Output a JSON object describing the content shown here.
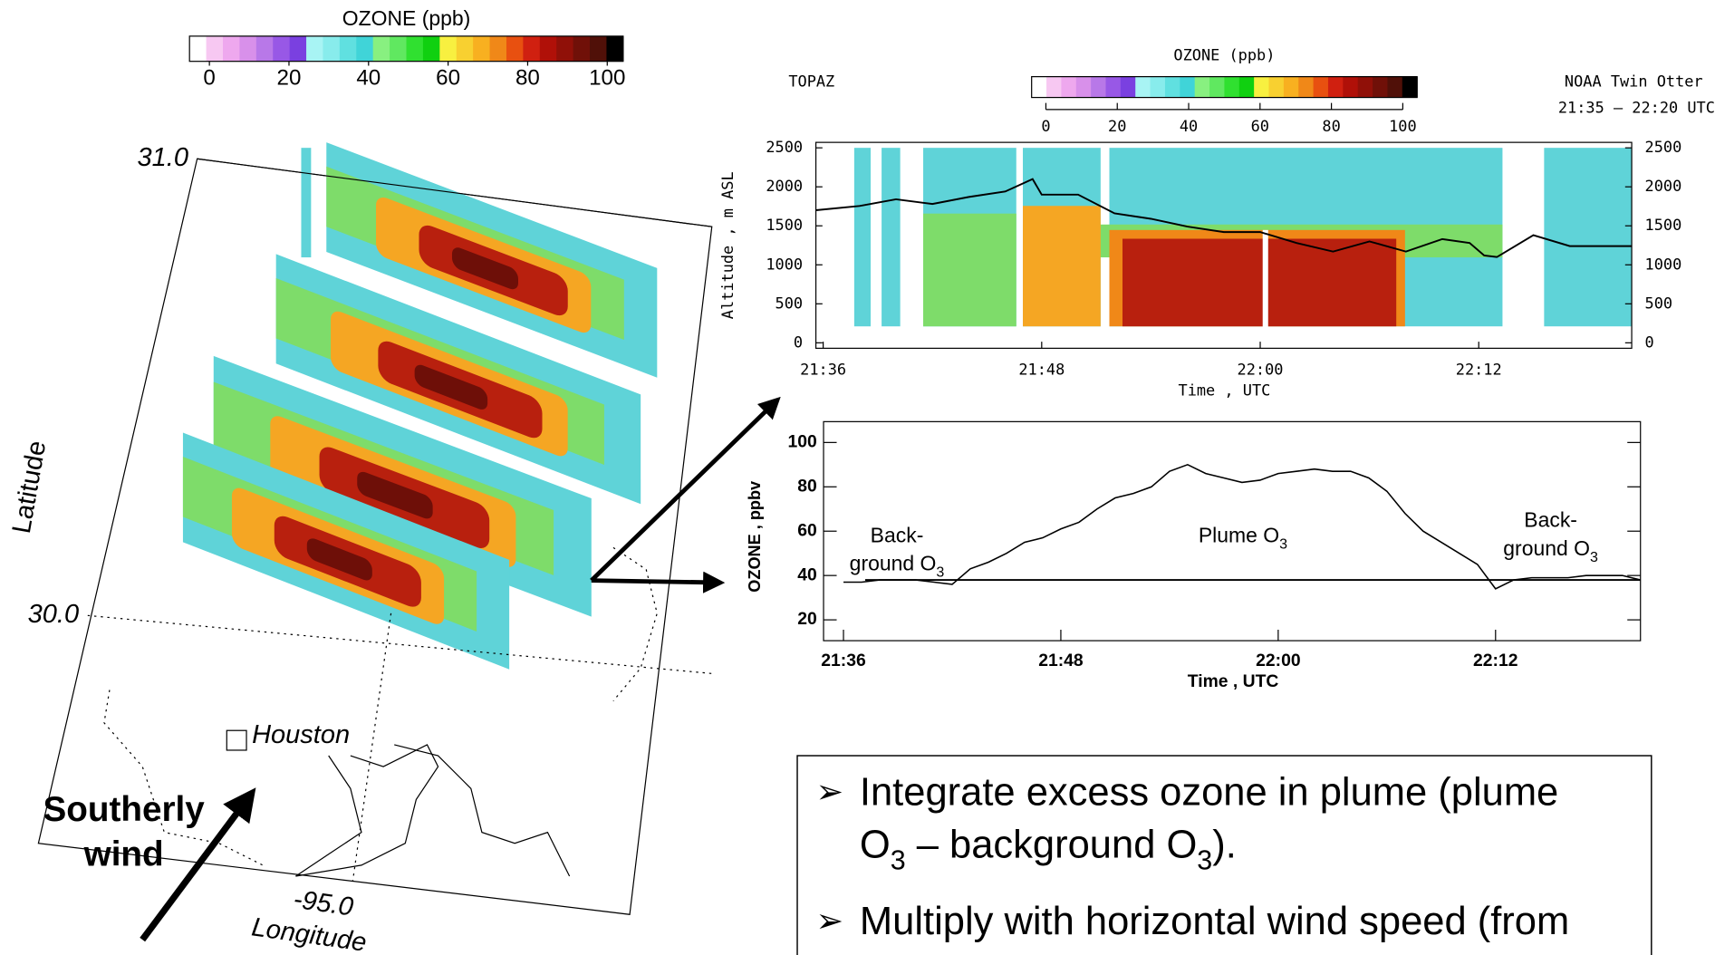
{
  "map_panel": {
    "colorbar": {
      "title": "OZONE (ppb)",
      "ticks": [
        0,
        20,
        40,
        60,
        80,
        100
      ],
      "lim": [
        -5,
        104
      ]
    },
    "lat_ticks": [
      {
        "value": 31,
        "label": "31.0"
      },
      {
        "value": 30,
        "label": "30.0"
      }
    ],
    "lon_ticks": [
      {
        "value": -95,
        "label": "-95.0"
      }
    ],
    "x_label": "Longitude",
    "y_label": "Latitude",
    "city": "Houston",
    "wind_label": [
      "Southerly",
      "wind"
    ]
  },
  "colorbar_colors": [
    "#ffffff",
    "#f7c8f2",
    "#eea8ee",
    "#d890ea",
    "#b878e8",
    "#9858e6",
    "#7a40e0",
    "#a8f4f4",
    "#88ecec",
    "#60e0e0",
    "#40d4d8",
    "#88f080",
    "#60e860",
    "#30e030",
    "#10d010",
    "#f8f040",
    "#f8d030",
    "#f8b020",
    "#f08818",
    "#e85010",
    "#d02010",
    "#b01008",
    "#901008",
    "#701008",
    "#501008",
    "#000000"
  ],
  "chart_data": [
    {
      "type": "curtain",
      "title": "OZONE (ppb)",
      "colorbar_ticks": [
        0,
        20,
        40,
        60,
        80,
        100
      ],
      "colorbar_lim": [
        -4,
        104
      ],
      "site_label": "TOPAZ",
      "platform": "NOAA Twin Otter",
      "time_range": "21:35 – 22:20 UTC",
      "y_label": "Altitude , m ASL",
      "x_label": "Time , UTC",
      "xlim": [
        1295.6,
        1340.4
      ],
      "ylim": [
        -70,
        2570
      ],
      "yticks": [
        0,
        500,
        1000,
        1500,
        2000,
        2500
      ],
      "xticks": [
        {
          "value": 1296,
          "label": "21:36"
        },
        {
          "value": 1308,
          "label": "21:48"
        },
        {
          "value": 1320,
          "label": "22:00"
        },
        {
          "value": 1332,
          "label": "22:12"
        }
      ],
      "x": [
        1295.6,
        1298,
        1300,
        1302,
        1304,
        1306,
        1307.5,
        1308,
        1310,
        1312,
        1314,
        1316,
        1318,
        1320,
        1322,
        1324,
        1326,
        1328,
        1330,
        1331.5,
        1332.3,
        1333,
        1335,
        1337,
        1339,
        1340.4
      ],
      "values": [
        1700,
        1755,
        1840,
        1780,
        1870,
        1940,
        2100,
        1900,
        1900,
        1660,
        1590,
        1490,
        1420,
        1420,
        1280,
        1170,
        1300,
        1170,
        1330,
        1280,
        1120,
        1100,
        1380,
        1240,
        1240,
        1240
      ],
      "color": "#000000"
    },
    {
      "type": "line",
      "y_label": "OZONE , ppbv",
      "x_label": "Time , UTC",
      "xlim": [
        1294.9,
        1340
      ],
      "ylim": [
        10.6,
        109.4
      ],
      "yticks": [
        20,
        40,
        60,
        80,
        100
      ],
      "xticks": [
        {
          "value": 1296,
          "label": "21:36"
        },
        {
          "value": 1308,
          "label": "21:48"
        },
        {
          "value": 1320,
          "label": "22:00"
        },
        {
          "value": 1332,
          "label": "22:12"
        }
      ],
      "x": [
        1296,
        1297,
        1298,
        1299,
        1300,
        1301,
        1302,
        1303,
        1304,
        1305,
        1306,
        1307,
        1308,
        1309,
        1310,
        1311,
        1312,
        1313,
        1314,
        1315,
        1316,
        1317,
        1318,
        1319,
        1320,
        1321,
        1322,
        1323,
        1324,
        1325,
        1326,
        1327,
        1328,
        1329,
        1330,
        1331,
        1332,
        1333,
        1334,
        1335,
        1336,
        1337,
        1338,
        1339,
        1340
      ],
      "values": [
        37,
        37,
        38,
        38,
        38,
        37,
        36,
        43,
        46,
        50,
        55,
        57,
        61,
        64,
        70,
        75,
        77,
        80,
        87,
        90,
        86,
        84,
        82,
        83,
        86,
        87,
        88,
        87,
        87,
        84,
        78,
        68,
        60,
        55,
        50,
        45,
        34,
        38,
        39,
        39,
        39,
        40,
        40,
        40,
        38
      ],
      "color": "#000000",
      "background_level": 38,
      "annotations": [
        [
          [
            "Back-"
          ],
          [
            "ground O",
            {
              "sub": "3"
            }
          ]
        ],
        [
          [
            "Plume O",
            {
              "sub": "3"
            }
          ]
        ],
        [
          [
            "Back-"
          ],
          [
            "ground O",
            {
              "sub": "3"
            }
          ]
        ]
      ]
    }
  ],
  "text_box": {
    "bullets": [
      [
        [
          "Integrate excess ozone in plume (plume"
        ],
        [
          "O",
          {
            "sub": "3"
          },
          " – background O",
          {
            "sub": "3"
          },
          ")."
        ]
      ],
      [
        [
          "Multiply with horizontal wind speed (from"
        ]
      ]
    ]
  }
}
